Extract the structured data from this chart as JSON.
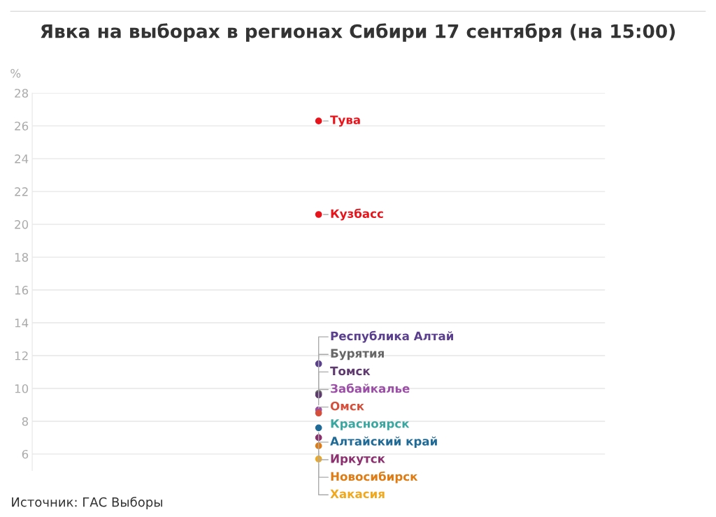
{
  "chart_data": {
    "type": "scatter",
    "title": "Явка на выборах в регионах Сибири 17 сентября (на 15:00)",
    "ylabel": "%",
    "categories": [
      null
    ],
    "series": [
      {
        "name": "Тува",
        "color": "#e8141c",
        "values": [
          26.3
        ]
      },
      {
        "name": "Кузбасс",
        "color": "#e8141c",
        "values": [
          20.6
        ]
      },
      {
        "name": "Республика Алтай",
        "color": "#5b3f8f",
        "values": [
          11.5
        ]
      },
      {
        "name": "Бурятия",
        "color": "#666666",
        "values": [
          9.7
        ]
      },
      {
        "name": "Томск",
        "color": "#5e3a6e",
        "values": [
          9.6
        ]
      },
      {
        "name": "Забайкалье",
        "color": "#9b4fa6",
        "values": [
          8.7
        ]
      },
      {
        "name": "Омск",
        "color": "#d4503c",
        "values": [
          8.5
        ]
      },
      {
        "name": "Красноярск",
        "color": "#3aa6a0",
        "values": [
          null
        ]
      },
      {
        "name": "Алтайский край",
        "color": "#1f6a96",
        "values": [
          7.6
        ]
      },
      {
        "name": "Иркутск",
        "color": "#8b2f6e",
        "values": [
          7.0
        ]
      },
      {
        "name": "Новосибирск",
        "color": "#e07b12",
        "values": [
          6.5
        ]
      },
      {
        "name": "Хакасия",
        "color": "#f0a81c",
        "values": [
          5.7
        ]
      }
    ],
    "ylim": [
      5,
      28
    ],
    "yticks": [
      6,
      8,
      10,
      12,
      14,
      16,
      18,
      20,
      22,
      24,
      26,
      28
    ],
    "grid": "y",
    "marker": "circle",
    "legend": false,
    "annotations": [
      "Источник: ГАС Выборы"
    ]
  }
}
